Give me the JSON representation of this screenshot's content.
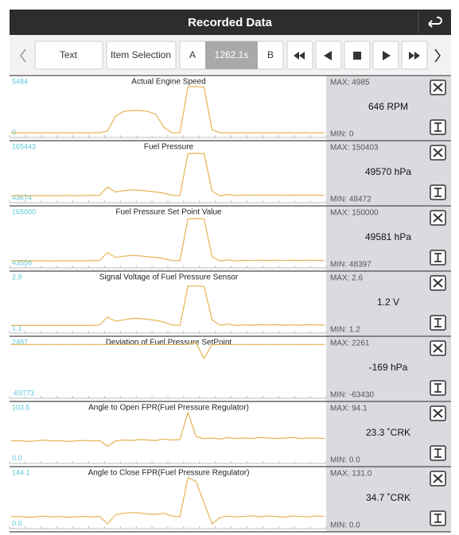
{
  "header": {
    "title": "Recorded Data"
  },
  "toolbar": {
    "text_button": "Text",
    "item_selection": "Item Selection",
    "marker_a": "A",
    "time": "1262.1s",
    "marker_b": "B"
  },
  "panels": [
    {
      "title": "Actual Engine Speed",
      "scale_top": 5484,
      "scale_bottom": 0,
      "max": "MAX: 4985",
      "value": "646 RPM",
      "min": "MIN: 0",
      "trace": [
        0,
        0,
        0,
        0,
        0,
        0,
        0,
        0,
        0,
        0,
        0,
        0,
        200,
        1800,
        2300,
        2400,
        2400,
        2300,
        2000,
        600,
        0,
        0,
        4950,
        4985,
        4900,
        300,
        0,
        0,
        0,
        0,
        0,
        0,
        0,
        0,
        0,
        0,
        0,
        0,
        0,
        0
      ]
    },
    {
      "title": "Fuel Pressure",
      "scale_top": 165443,
      "scale_bottom": 43674,
      "max": "MAX: 150403",
      "value": "49570 hPa",
      "min": "MIN: 48472",
      "trace": [
        49000,
        49200,
        48900,
        49100,
        49300,
        49000,
        49200,
        49400,
        49100,
        49300,
        49500,
        49800,
        70000,
        58000,
        61000,
        63000,
        62000,
        60000,
        58000,
        55000,
        50000,
        49600,
        150000,
        150403,
        150000,
        60000,
        48472,
        52000,
        49000,
        50500,
        50000,
        50800,
        50200,
        50600,
        50000,
        50400,
        50100,
        50600,
        50300,
        50000
      ]
    },
    {
      "title": "Fuel Pressure Set Point Value",
      "scale_top": 165000,
      "scale_bottom": 43558,
      "max": "MAX: 150000",
      "value": "49581 hPa",
      "min": "MIN: 48397",
      "trace": [
        48900,
        49100,
        48800,
        49000,
        49200,
        48900,
        49100,
        49300,
        49000,
        49200,
        49400,
        49700,
        69000,
        57000,
        60000,
        62000,
        61000,
        59000,
        57000,
        54000,
        49900,
        49500,
        149500,
        150000,
        149500,
        59000,
        48397,
        51500,
        48900,
        50300,
        49900,
        50600,
        50100,
        50500,
        49900,
        50300,
        50000,
        50500,
        50200,
        49900
      ]
    },
    {
      "title": "Signal Voltage of Fuel Pressure Sensor",
      "scale_top": 2.9,
      "scale_bottom": 1.1,
      "max": "MAX: 2.6",
      "value": "1.2 V",
      "min": "MIN: 1.2",
      "trace": [
        1.2,
        1.2,
        1.2,
        1.2,
        1.2,
        1.2,
        1.2,
        1.2,
        1.2,
        1.2,
        1.2,
        1.22,
        1.5,
        1.35,
        1.4,
        1.45,
        1.45,
        1.42,
        1.38,
        1.32,
        1.22,
        1.2,
        2.6,
        2.6,
        2.58,
        1.4,
        1.2,
        1.25,
        1.2,
        1.22,
        1.21,
        1.23,
        1.22,
        1.23,
        1.21,
        1.22,
        1.21,
        1.23,
        1.22,
        1.21
      ]
    },
    {
      "title": "Deviation of Fuel Pressure SetPoint",
      "scale_top": 2487,
      "scale_bottom": -69773,
      "max": "MAX: 2261",
      "value": "-169 hPa",
      "min": "MIN: -63430",
      "trace": [
        -169,
        -150,
        -180,
        -160,
        -170,
        -165,
        -175,
        -160,
        -170,
        -165,
        -170,
        -160,
        -200,
        -150,
        -170,
        -160,
        -165,
        -170,
        -160,
        -175,
        -170,
        -165,
        -100,
        2261,
        -20000,
        -400,
        -169,
        -170,
        -165,
        -160,
        -170,
        -175,
        -165,
        -170,
        -160,
        -165,
        -170,
        -168,
        -166,
        -169
      ]
    },
    {
      "title": "Angle to Open FPR(Fuel Pressure Regulator)",
      "scale_top": 103.5,
      "scale_bottom": {
        "value": 0,
        "label": "0.0"
      },
      "max": "MAX: 94.1",
      "value": "23.3 ˚CRK",
      "min": "MIN: 0.0",
      "trace": [
        36,
        37,
        35,
        36,
        38,
        36,
        37,
        35,
        36,
        37,
        36,
        37,
        25,
        36,
        38,
        37,
        39,
        38,
        37,
        40,
        38,
        39,
        94.1,
        45,
        41,
        42,
        40,
        43,
        41,
        42,
        41,
        43,
        42,
        41,
        42,
        43,
        41,
        42,
        42,
        41
      ]
    },
    {
      "title": "Angle to Close FPR(Fuel Pressure Regulator)",
      "scale_top": 144.1,
      "scale_bottom": {
        "value": 0,
        "label": "0.0"
      },
      "max": "MAX: 131.0",
      "value": "34.7 ˚CRK",
      "min": "MIN: 0.0",
      "trace": [
        20,
        21,
        19,
        20,
        22,
        20,
        21,
        19,
        20,
        21,
        20,
        21,
        0,
        26,
        30,
        32,
        31,
        28,
        27,
        30,
        22,
        20,
        131,
        120,
        60,
        0,
        18,
        22,
        20,
        21,
        23,
        20,
        22,
        21,
        19,
        22,
        21,
        20,
        22,
        21
      ]
    }
  ]
}
